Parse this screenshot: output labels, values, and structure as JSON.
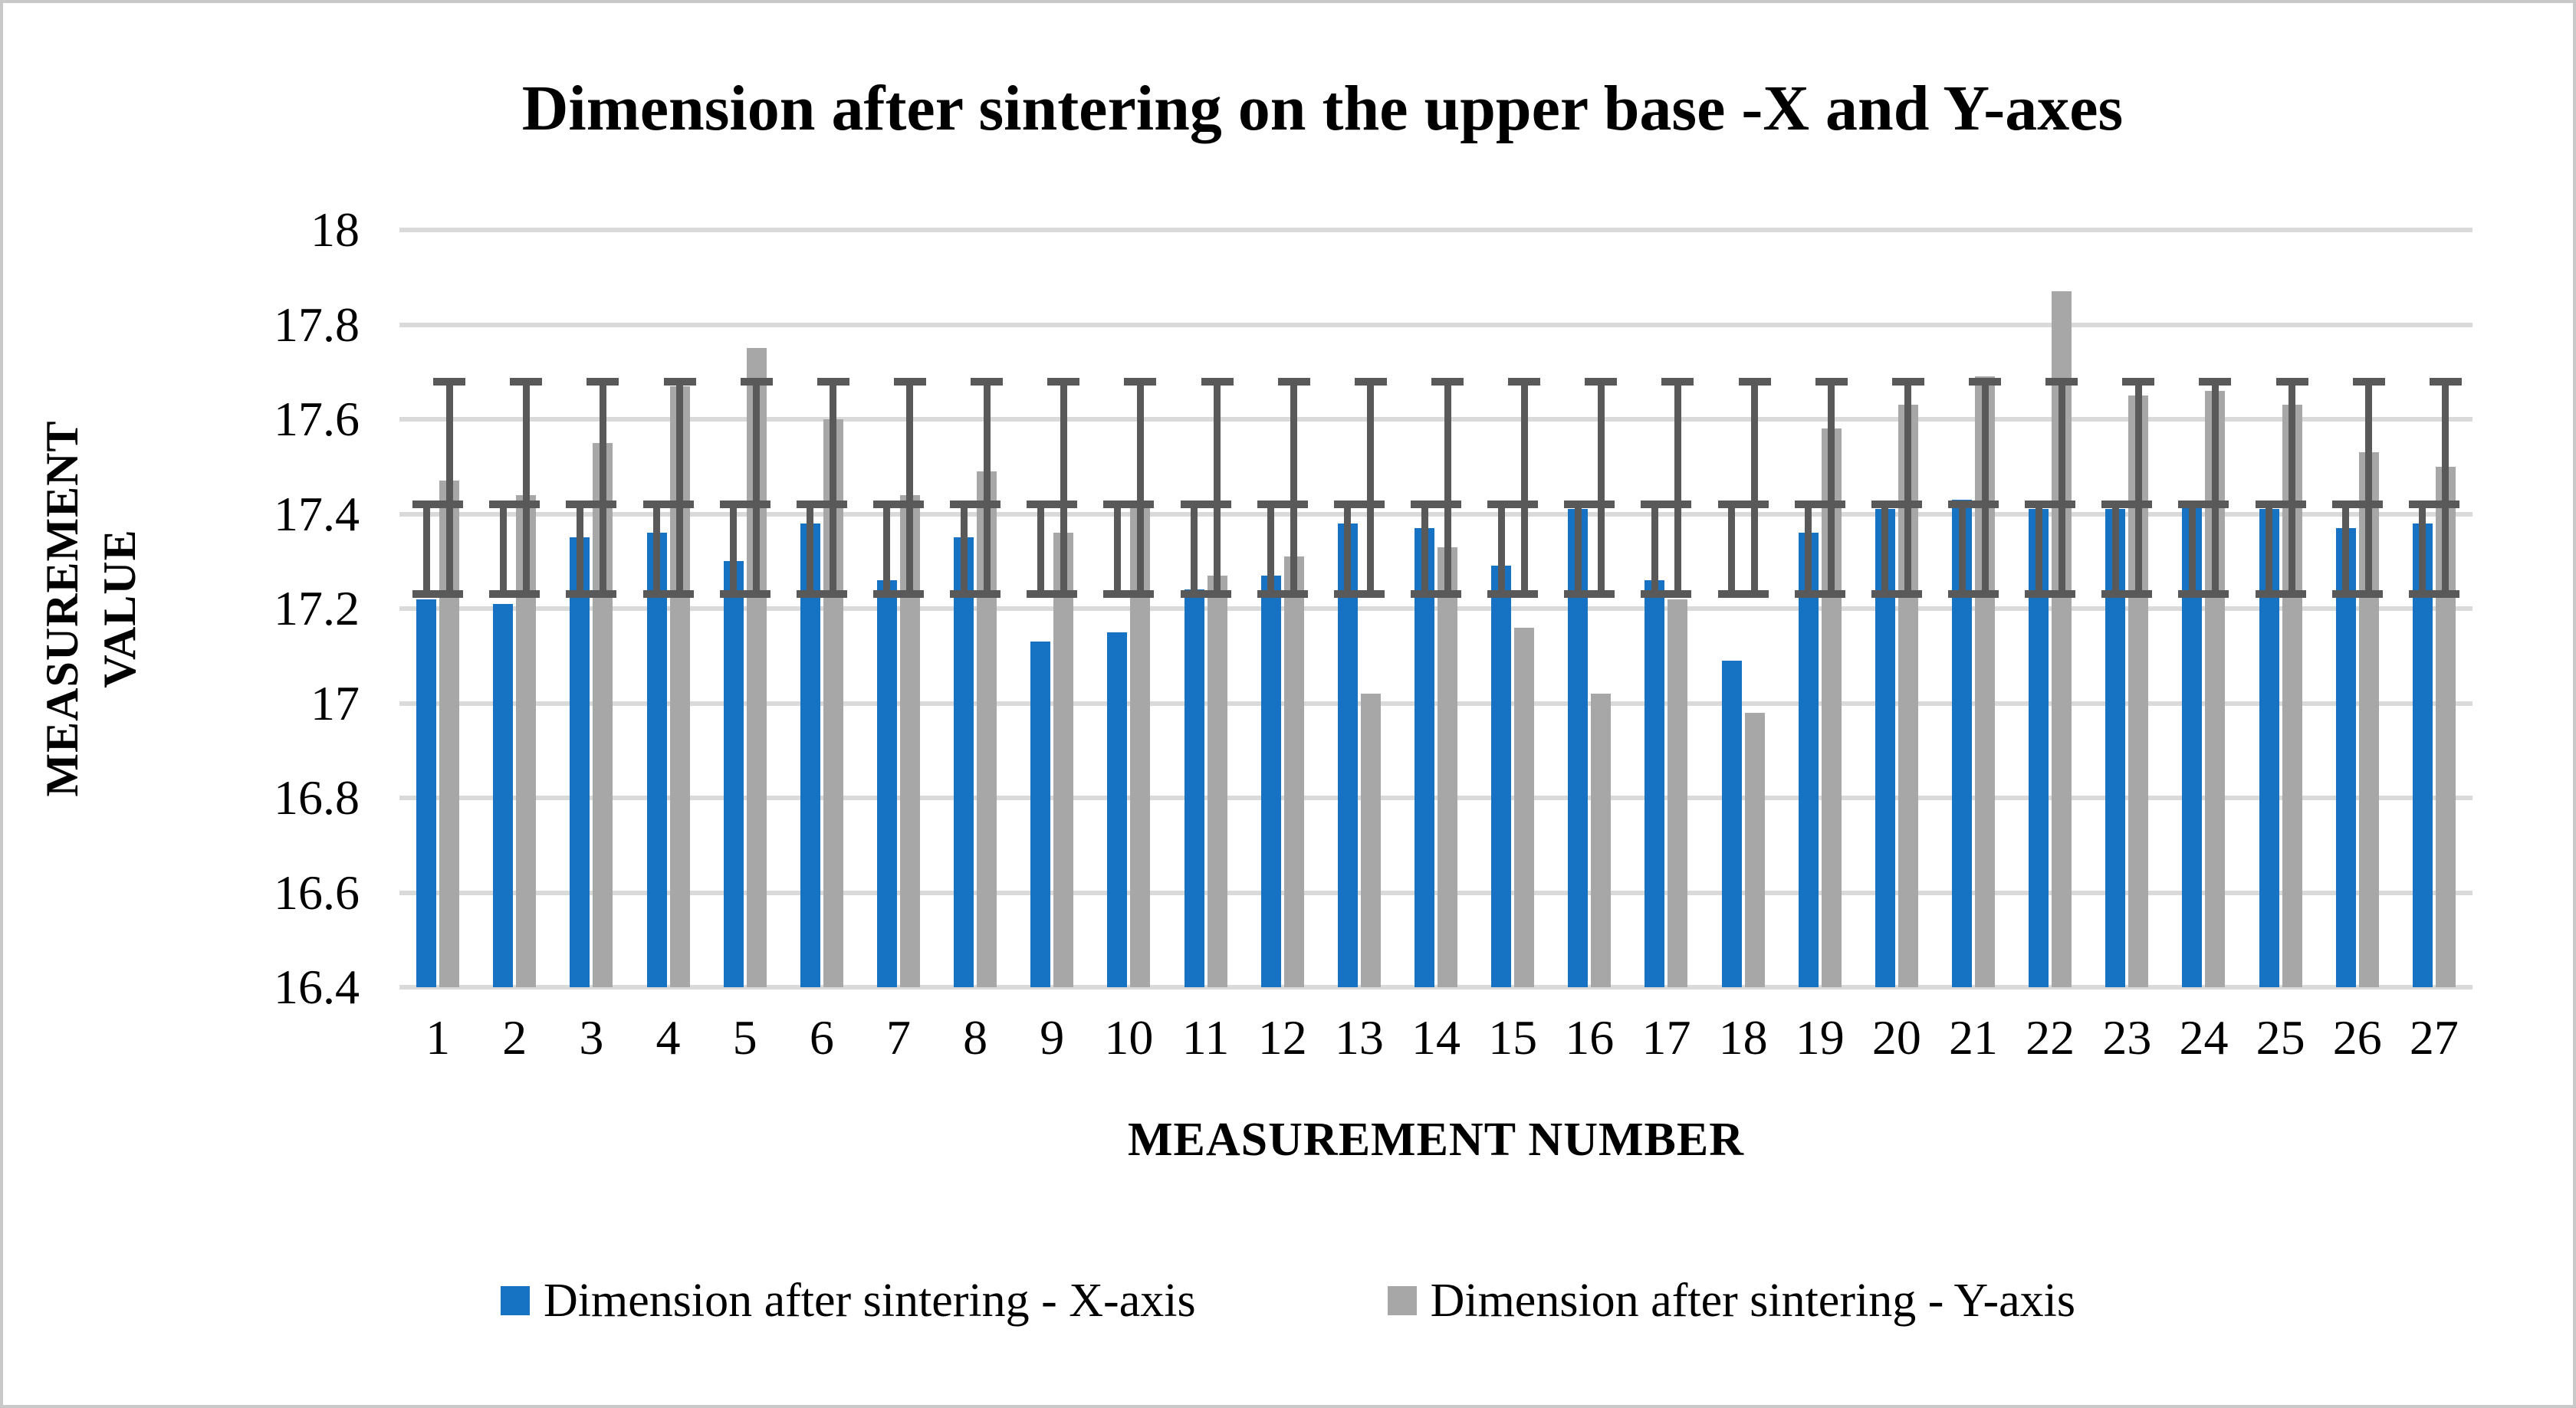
{
  "title": "Dimension after sintering on the upper base -X and Y-axes",
  "y_axis": {
    "title_line1": "MEASUREMENT",
    "title_line2": "VALUE"
  },
  "x_axis": {
    "title": "MEASUREMENT NUMBER"
  },
  "legend": {
    "items": [
      {
        "label": "Dimension after sintering - X-axis",
        "color": "#1673c4"
      },
      {
        "label": "Dimension after sintering - Y-axis",
        "color": "#a7a7a7"
      }
    ]
  },
  "colors": {
    "grid": "#dadada",
    "error_bar": "#595959",
    "background": "#ffffff",
    "border": "#c9c9c9",
    "text": "#000000"
  },
  "chart_data": {
    "type": "bar",
    "title": "Dimension after sintering on the upper base -X and Y-axes",
    "xlabel": "MEASUREMENT NUMBER",
    "ylabel": "MEASUREMENT VALUE",
    "ylim": [
      16.4,
      18
    ],
    "ytick_step": 0.2,
    "ytick_labels": [
      "18",
      "17.8",
      "17.6",
      "17.4",
      "17.2",
      "17",
      "16.8",
      "16.6",
      "16.4"
    ],
    "grid": true,
    "legend_position": "bottom",
    "categories": [
      "1",
      "2",
      "3",
      "4",
      "5",
      "6",
      "7",
      "8",
      "9",
      "10",
      "11",
      "12",
      "13",
      "14",
      "15",
      "16",
      "17",
      "18",
      "19",
      "20",
      "21",
      "22",
      "23",
      "24",
      "25",
      "26",
      "27"
    ],
    "series": [
      {
        "name": "Dimension after sintering - X-axis",
        "color": "#1673c4",
        "values": [
          17.22,
          17.21,
          17.35,
          17.36,
          17.3,
          17.38,
          17.26,
          17.35,
          17.13,
          17.15,
          17.24,
          17.27,
          17.38,
          17.37,
          17.29,
          17.41,
          17.26,
          17.09,
          17.36,
          17.41,
          17.43,
          17.41,
          17.41,
          17.42,
          17.41,
          17.37,
          17.38
        ],
        "error_bar": {
          "low": 17.23,
          "high": 17.42
        }
      },
      {
        "name": "Dimension after sintering - Y-axis",
        "color": "#a7a7a7",
        "values": [
          17.47,
          17.44,
          17.55,
          17.67,
          17.75,
          17.6,
          17.44,
          17.49,
          17.36,
          17.42,
          17.27,
          17.31,
          17.02,
          17.33,
          17.16,
          17.02,
          17.22,
          16.98,
          17.58,
          17.63,
          17.69,
          17.87,
          17.65,
          17.66,
          17.63,
          17.53,
          17.5
        ],
        "error_bar": {
          "low": 17.23,
          "high": 17.68
        }
      }
    ],
    "error_bar_color": "#595959"
  }
}
